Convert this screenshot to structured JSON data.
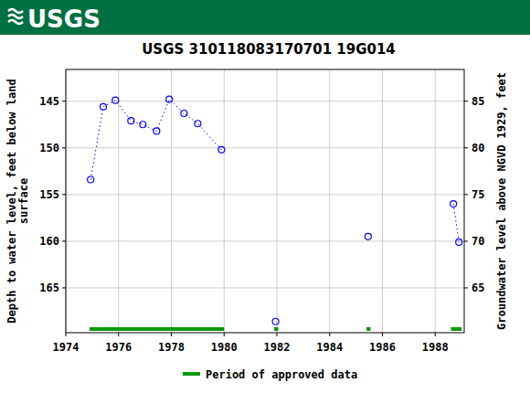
{
  "chart_data": {
    "type": "line",
    "logo": "USGS",
    "title": "USGS 310118083170701 19G014",
    "ylabel": [
      "Depth to water level, feet below land",
      "surface"
    ],
    "y2label": "Groundwater level above NGVD 1929, feet",
    "xlim": [
      1974,
      1989.1
    ],
    "xticks": [
      1974,
      1976,
      1978,
      1980,
      1982,
      1984,
      1986,
      1988
    ],
    "ylim": [
      141.6,
      169.8
    ],
    "yticks": [
      145,
      150,
      155,
      160,
      165
    ],
    "y2lim": [
      88.4,
      60.2
    ],
    "y2ticks": [
      85,
      80,
      75,
      70,
      65
    ],
    "grid": true,
    "series": [
      {
        "color": "#0000ff",
        "marker": "circle",
        "line_style": "dotted",
        "x": [
          1974.94,
          1975.42,
          1975.88,
          1976.47,
          1976.92,
          1977.44,
          1977.92,
          1978.48,
          1979.0,
          1979.9,
          1980.9,
          1981.95,
          1983.7,
          1985.46,
          1987.0,
          1988.69,
          1988.9
        ],
        "values": [
          153.4,
          145.6,
          144.9,
          147.1,
          147.5,
          148.2,
          144.8,
          146.3,
          147.4,
          150.2,
          null,
          168.6,
          null,
          159.5,
          null,
          156.0,
          160.1
        ]
      }
    ],
    "approved": {
      "name": "Period of approved data",
      "color": "#009900",
      "periods": [
        [
          1974.9,
          1980.0
        ],
        [
          1981.9,
          1982.05
        ],
        [
          1985.4,
          1985.55
        ],
        [
          1988.6,
          1989.0
        ]
      ]
    },
    "legend": "bottom"
  }
}
